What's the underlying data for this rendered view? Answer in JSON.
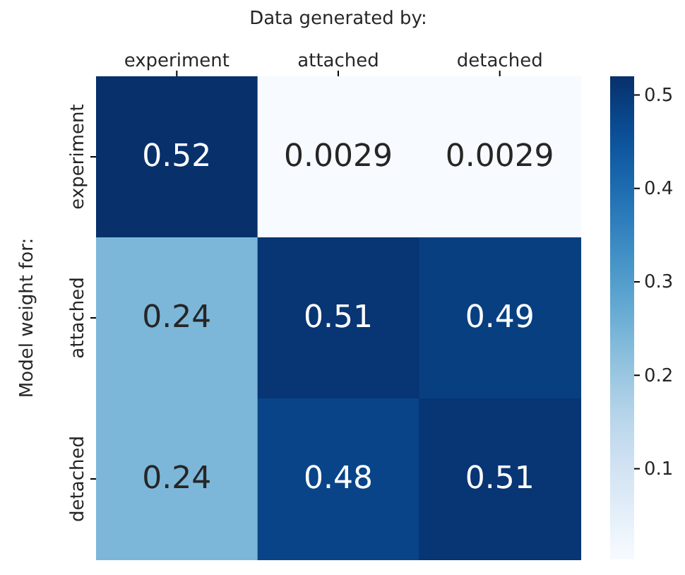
{
  "chart_data": {
    "type": "heatmap",
    "xlabel": "Data generated by:",
    "ylabel": "Model weight for:",
    "categories": [
      "experiment",
      "attached",
      "detached"
    ],
    "y_categories": [
      "experiment",
      "attached",
      "detached"
    ],
    "cells": [
      [
        0.52,
        0.0029,
        0.0029
      ],
      [
        0.24,
        0.51,
        0.49
      ],
      [
        0.24,
        0.48,
        0.51
      ]
    ],
    "data_labels": true,
    "clim": [
      0.0029,
      0.52
    ],
    "cticks": [
      0.1,
      0.2,
      0.3,
      0.4,
      0.5
    ]
  }
}
